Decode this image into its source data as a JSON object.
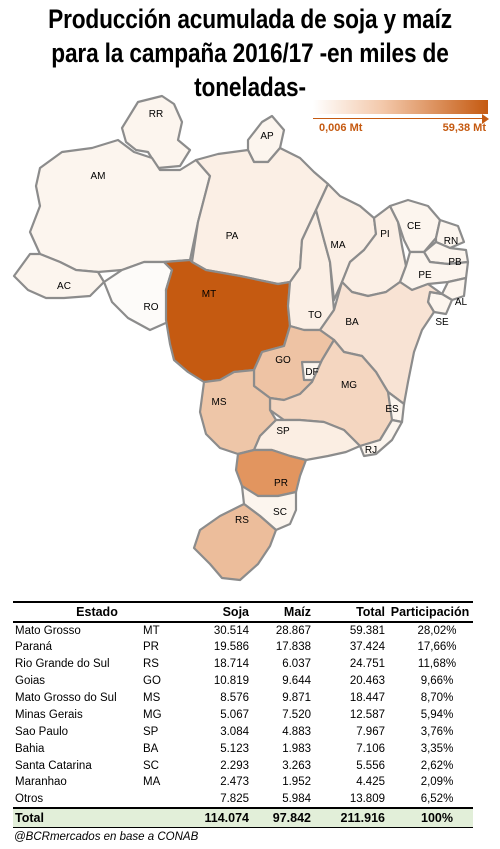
{
  "title": "Producción acumulada de soja y maíz para la campaña 2016/17 -en miles de toneladas-",
  "legend": {
    "min_label": "0,006 Mt",
    "max_label": "59,38 Mt",
    "scale_color": "#c55a11"
  },
  "map": {
    "states": [
      {
        "code": "RR",
        "total": 0,
        "color": "#fcf5ee"
      },
      {
        "code": "AP",
        "total": 0,
        "color": "#fcf5ee"
      },
      {
        "code": "AM",
        "total": 0,
        "color": "#fcf5ee"
      },
      {
        "code": "PA",
        "total": 1500,
        "color": "#fbefe5"
      },
      {
        "code": "AC",
        "total": 0,
        "color": "#fcf5ee"
      },
      {
        "code": "RO",
        "total": 1800,
        "color": "#fdfbf9"
      },
      {
        "code": "MT",
        "total": 59381,
        "color": "#c55a11"
      },
      {
        "code": "TO",
        "total": 3500,
        "color": "#fbefe5"
      },
      {
        "code": "MA",
        "total": 4425,
        "color": "#fbefe5"
      },
      {
        "code": "PI",
        "total": 3000,
        "color": "#fbefe5"
      },
      {
        "code": "CE",
        "total": 0,
        "color": "#fcf5ee"
      },
      {
        "code": "RN",
        "total": 0,
        "color": "#fcf5ee"
      },
      {
        "code": "PB",
        "total": 0,
        "color": "#fcf5ee"
      },
      {
        "code": "PE",
        "total": 0,
        "color": "#fcf5ee"
      },
      {
        "code": "AL",
        "total": 0,
        "color": "#fcf5ee"
      },
      {
        "code": "SE",
        "total": 0,
        "color": "#fcf5ee"
      },
      {
        "code": "BA",
        "total": 7106,
        "color": "#f8e3d4"
      },
      {
        "code": "GO",
        "total": 20463,
        "color": "#eec3a4"
      },
      {
        "code": "DF",
        "total": 500,
        "color": "#fcf5ee"
      },
      {
        "code": "MG",
        "total": 12587,
        "color": "#f4d6c0"
      },
      {
        "code": "ES",
        "total": 0,
        "color": "#fcf5ee"
      },
      {
        "code": "MS",
        "total": 18447,
        "color": "#eec6a8"
      },
      {
        "code": "SP",
        "total": 7967,
        "color": "#fbeee3"
      },
      {
        "code": "RJ",
        "total": 0,
        "color": "#fcf5ee"
      },
      {
        "code": "PR",
        "total": 37424,
        "color": "#e2955f"
      },
      {
        "code": "SC",
        "total": 5556,
        "color": "#fcf5ee"
      },
      {
        "code": "RS",
        "total": 24751,
        "color": "#ecbd9b"
      }
    ]
  },
  "table": {
    "headers": {
      "estado": "Estado",
      "soja": "Soja",
      "maiz": "Maíz",
      "total": "Total",
      "participacion": "Participación"
    },
    "rows": [
      {
        "estado": "Mato Grosso",
        "abbr": "MT",
        "soja": "30.514",
        "maiz": "28.867",
        "total": "59.381",
        "part": "28,02%"
      },
      {
        "estado": "Paraná",
        "abbr": "PR",
        "soja": "19.586",
        "maiz": "17.838",
        "total": "37.424",
        "part": "17,66%"
      },
      {
        "estado": "Rio Grande do Sul",
        "abbr": "RS",
        "soja": "18.714",
        "maiz": "6.037",
        "total": "24.751",
        "part": "11,68%"
      },
      {
        "estado": "Goias",
        "abbr": "GO",
        "soja": "10.819",
        "maiz": "9.644",
        "total": "20.463",
        "part": "9,66%"
      },
      {
        "estado": "Mato Grosso do Sul",
        "abbr": "MS",
        "soja": "8.576",
        "maiz": "9.871",
        "total": "18.447",
        "part": "8,70%"
      },
      {
        "estado": "Minas Gerais",
        "abbr": "MG",
        "soja": "5.067",
        "maiz": "7.520",
        "total": "12.587",
        "part": "5,94%"
      },
      {
        "estado": "Sao Paulo",
        "abbr": "SP",
        "soja": "3.084",
        "maiz": "4.883",
        "total": "7.967",
        "part": "3,76%"
      },
      {
        "estado": "Bahia",
        "abbr": "BA",
        "soja": "5.123",
        "maiz": "1.983",
        "total": "7.106",
        "part": "3,35%"
      },
      {
        "estado": "Santa Catarina",
        "abbr": "SC",
        "soja": "2.293",
        "maiz": "3.263",
        "total": "5.556",
        "part": "2,62%"
      },
      {
        "estado": "Maranhao",
        "abbr": "MA",
        "soja": "2.473",
        "maiz": "1.952",
        "total": "4.425",
        "part": "2,09%"
      },
      {
        "estado": "Otros",
        "abbr": "",
        "soja": "7.825",
        "maiz": "5.984",
        "total": "13.809",
        "part": "6,52%"
      }
    ],
    "total": {
      "label": "Total",
      "soja": "114.074",
      "maiz": "97.842",
      "total": "211.916",
      "part": "100%"
    }
  },
  "source": "@BCRmercados en base a CONAB"
}
